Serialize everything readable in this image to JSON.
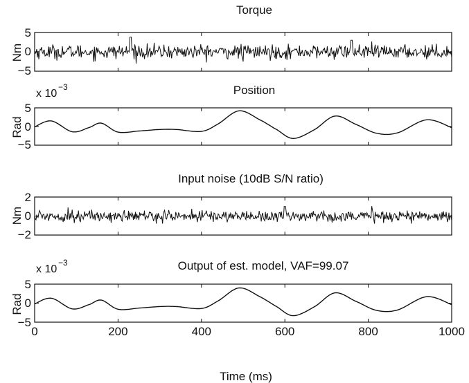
{
  "chart_data": [
    {
      "type": "line",
      "title": "Torque",
      "ylabel": "Nm",
      "ylim": [
        -5,
        5
      ],
      "yticks": [
        "5",
        "0",
        "−5"
      ],
      "xlim": [
        0,
        1000
      ],
      "series": [
        {
          "signal": "random-noise",
          "approx_std": 0.9,
          "approx_range": [
            -3,
            4
          ],
          "samples_shown": [
            {
              "x": 230,
              "y": 3.8
            },
            {
              "x": 500,
              "y": -2.5
            },
            {
              "x": 760,
              "y": 3.0
            }
          ]
        }
      ]
    },
    {
      "type": "line",
      "title": "Position",
      "ylabel": "Rad",
      "scale_note": "x 10",
      "scale_exponent": "−3",
      "ylim": [
        -5,
        5
      ],
      "yticks": [
        "5",
        "0",
        "−5"
      ],
      "xlim": [
        0,
        1000
      ],
      "series": [
        {
          "x": [
            0,
            40,
            90,
            130,
            160,
            200,
            250,
            300,
            340,
            400,
            440,
            490,
            540,
            580,
            620,
            670,
            720,
            770,
            820,
            870,
            940,
            1000
          ],
          "y": [
            -0.1,
            1.5,
            -1.4,
            -0.3,
            0.9,
            -1.5,
            -1.2,
            -0.8,
            -0.8,
            -1.3,
            0.7,
            4.2,
            1.8,
            -0.8,
            -3.2,
            -0.9,
            2.8,
            0.6,
            -1.8,
            -1.7,
            1.8,
            -0.3
          ]
        }
      ]
    },
    {
      "type": "line",
      "title": "Input noise (10dB S/N ratio)",
      "ylabel": "Nm",
      "ylim": [
        -2,
        2
      ],
      "yticks": [
        "2",
        "0",
        "−2"
      ],
      "xlim": [
        0,
        1000
      ],
      "series": [
        {
          "signal": "random-noise",
          "approx_std": 0.3,
          "approx_range": [
            -0.8,
            1.1
          ],
          "samples_shown": [
            {
              "x": 80,
              "y": 0.9
            },
            {
              "x": 600,
              "y": 1.0
            }
          ]
        }
      ]
    },
    {
      "type": "line",
      "title": "Output of est. model, VAF=99.07",
      "ylabel": "Rad",
      "scale_note": "x 10",
      "scale_exponent": "−3",
      "ylim": [
        -5,
        5
      ],
      "yticks": [
        "5",
        "0",
        "−5"
      ],
      "xlim": [
        0,
        1000
      ],
      "xticks": [
        "0",
        "200",
        "400",
        "600",
        "800",
        "1000"
      ],
      "xtick_values": [
        0,
        200,
        400,
        600,
        800,
        1000
      ],
      "xlabel": "Time (ms)",
      "series": [
        {
          "x": [
            0,
            40,
            90,
            130,
            160,
            200,
            250,
            300,
            340,
            400,
            440,
            490,
            540,
            580,
            620,
            670,
            720,
            770,
            820,
            870,
            940,
            1000
          ],
          "y": [
            -0.2,
            1.3,
            -1.5,
            -0.4,
            0.8,
            -1.6,
            -1.3,
            -0.9,
            -0.9,
            -1.4,
            0.6,
            4.0,
            1.7,
            -0.9,
            -3.3,
            -1.0,
            2.7,
            0.5,
            -1.9,
            -1.8,
            1.7,
            -0.4
          ]
        }
      ]
    }
  ]
}
